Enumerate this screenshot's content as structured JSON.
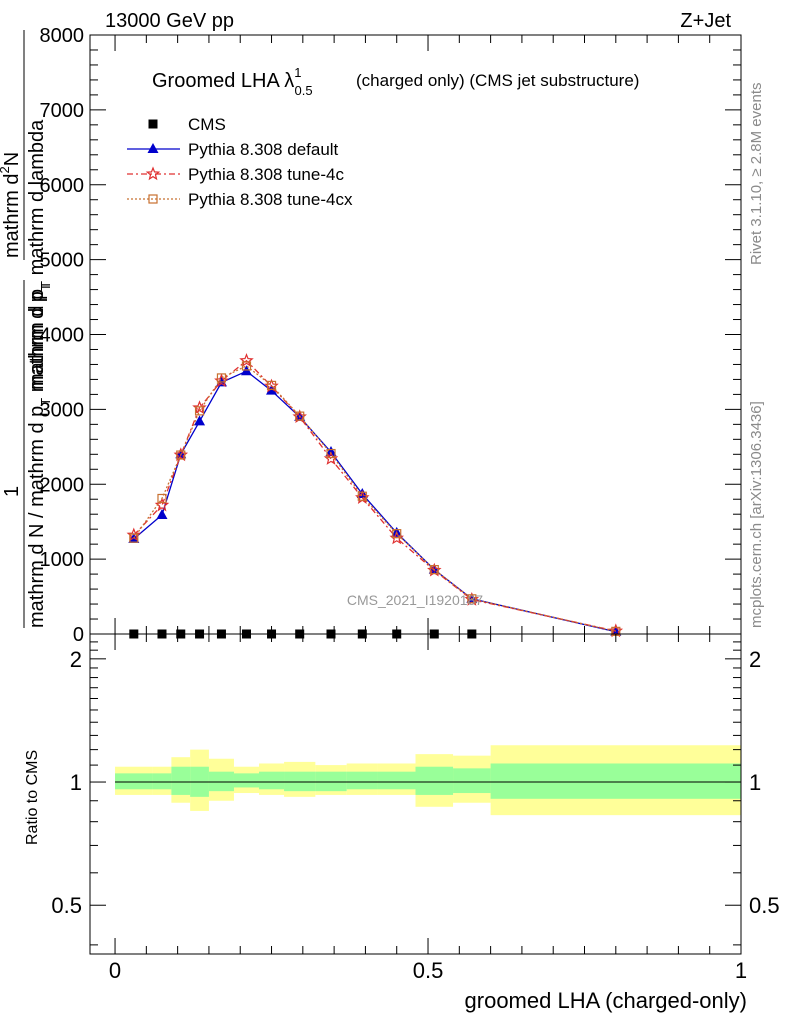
{
  "header": {
    "energy": "13000 GeV pp",
    "process": "Z+Jet"
  },
  "side_labels": {
    "rivet": "Rivet 3.1.10, ≥ 2.8M events",
    "mcplots": "mcplots.cern.ch [arXiv:1306.3436]"
  },
  "watermark": "CMS_2021_I1920187",
  "chart_data": [
    {
      "type": "line",
      "title_main": "Groomed LHA ",
      "title_symbol": "λ",
      "title_sup": "1",
      "title_sub": "0.5",
      "title_rest": "(charged only) (CMS jet substructure)",
      "ylabel_num_1": "mathrm d",
      "ylabel_num_2": "2",
      "ylabel_num_3": "N",
      "ylabel_den": "mathrm d p",
      "ylabel_den_sub": "T",
      "ylabel_den_2": " mathrm d lambda",
      "ylabel_pre": "1",
      "ylabel_pre_den": "mathrm d N / mathrm d p",
      "ylabel_pre_den_sub": "T",
      "ylabel_pre_den_2": " mathrm d p",
      "ylabel_pre_den_sub2": "T",
      "xlim": [
        -0.04,
        1.0
      ],
      "ylim": [
        0,
        8000
      ],
      "yticks": [
        0,
        1000,
        2000,
        3000,
        4000,
        5000,
        6000,
        7000,
        8000
      ],
      "ytick_labels": [
        "0",
        "1000",
        "2000",
        "3000",
        "4000",
        "5000",
        "6000",
        "7000",
        "8000"
      ],
      "legend": [
        "CMS",
        "Pythia 8.308 default",
        "Pythia 8.308 tune-4c",
        "Pythia 8.308 tune-4cx"
      ],
      "legend_position": "top-left",
      "x": [
        0.03,
        0.075,
        0.105,
        0.135,
        0.17,
        0.21,
        0.25,
        0.295,
        0.345,
        0.395,
        0.45,
        0.51,
        0.57,
        0.8
      ],
      "series": [
        {
          "name": "CMS",
          "color": "#000000",
          "values": [
            0,
            0,
            0,
            0,
            0,
            0,
            0,
            0,
            0,
            0,
            0,
            0,
            0,
            null
          ]
        },
        {
          "name": "Pythia 8.308 default",
          "color": "#0000cc",
          "values": [
            1270,
            1590,
            2400,
            2840,
            3360,
            3510,
            3250,
            2900,
            2430,
            1870,
            1350,
            860,
            470,
            30
          ]
        },
        {
          "name": "Pythia 8.308 tune-4c",
          "color": "#e03030",
          "values": [
            1320,
            1720,
            2390,
            3020,
            3380,
            3650,
            3310,
            2900,
            2340,
            1820,
            1280,
            850,
            460,
            40
          ]
        },
        {
          "name": "Pythia 8.308 tune-4cx",
          "color": "#c87030",
          "values": [
            1280,
            1810,
            2390,
            2980,
            3420,
            3580,
            3320,
            2910,
            2410,
            1840,
            1340,
            860,
            470,
            35
          ]
        }
      ]
    },
    {
      "type": "area",
      "ylabel": "Ratio to CMS",
      "xlabel": "groomed LHA (charged-only)",
      "xlim": [
        -0.04,
        1.0
      ],
      "ylim": [
        0.38,
        2.3
      ],
      "log_y": true,
      "yticks": [
        0.5,
        1,
        2
      ],
      "ytick_labels": [
        "0.5",
        "1",
        "2"
      ],
      "xticks": [
        0,
        0.5,
        1
      ],
      "xtick_labels": [
        "0",
        "0.5",
        "1"
      ],
      "bin_edges": [
        0,
        0.06,
        0.09,
        0.12,
        0.15,
        0.19,
        0.23,
        0.27,
        0.32,
        0.37,
        0.42,
        0.48,
        0.54,
        0.6,
        1.0
      ],
      "band_inner_low": [
        0.96,
        0.96,
        0.93,
        0.92,
        0.95,
        0.97,
        0.96,
        0.95,
        0.95,
        0.96,
        0.96,
        0.93,
        0.94,
        0.91
      ],
      "band_inner_high": [
        1.05,
        1.05,
        1.09,
        1.09,
        1.06,
        1.05,
        1.06,
        1.06,
        1.06,
        1.06,
        1.06,
        1.09,
        1.08,
        1.11
      ],
      "band_outer_low": [
        0.93,
        0.93,
        0.89,
        0.85,
        0.9,
        0.94,
        0.93,
        0.92,
        0.93,
        0.93,
        0.93,
        0.87,
        0.89,
        0.83
      ],
      "band_outer_high": [
        1.09,
        1.09,
        1.15,
        1.2,
        1.14,
        1.09,
        1.11,
        1.12,
        1.1,
        1.11,
        1.11,
        1.17,
        1.16,
        1.23
      ],
      "inner_color": "#99ff99",
      "outer_color": "#ffff99"
    }
  ]
}
